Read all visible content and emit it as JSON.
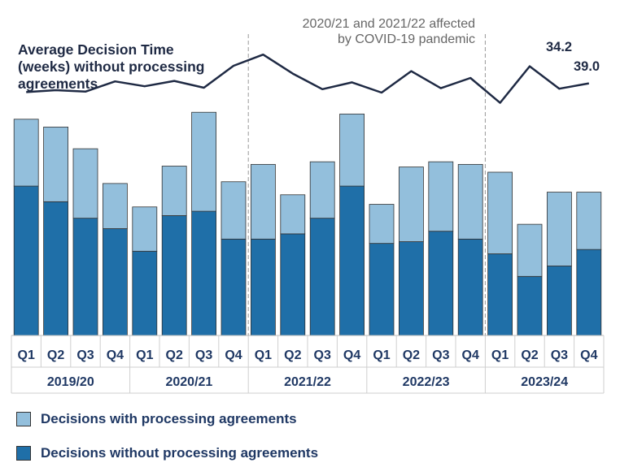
{
  "chart_data": {
    "type": "bar",
    "stacked": true,
    "categories": [
      "Q1",
      "Q2",
      "Q3",
      "Q4",
      "Q1",
      "Q2",
      "Q3",
      "Q4",
      "Q1",
      "Q2",
      "Q3",
      "Q4",
      "Q1",
      "Q2",
      "Q3",
      "Q4",
      "Q1",
      "Q2",
      "Q3",
      "Q4"
    ],
    "groups": [
      {
        "label": "2019/20",
        "start": 0,
        "end": 3
      },
      {
        "label": "2020/21",
        "start": 4,
        "end": 7
      },
      {
        "label": "2021/22",
        "start": 8,
        "end": 11
      },
      {
        "label": "2022/23",
        "start": 12,
        "end": 15
      },
      {
        "label": "2023/24",
        "start": 16,
        "end": 19
      }
    ],
    "series": [
      {
        "name": "Decisions without processing agreements",
        "color": "#1f6fa8",
        "values": [
          172,
          154,
          135,
          123,
          97,
          138,
          143,
          111,
          111,
          117,
          135,
          172,
          106,
          108,
          120,
          111,
          94,
          68,
          80,
          99
        ]
      },
      {
        "name": "Decisions with processing agreements",
        "color": "#93bfdc",
        "values": [
          77,
          86,
          80,
          52,
          51,
          57,
          114,
          66,
          86,
          45,
          65,
          83,
          45,
          86,
          80,
          86,
          94,
          60,
          85,
          66
        ]
      }
    ],
    "ylim": [
      0,
      260
    ],
    "line": {
      "name": "Average Decision Time (weeks) without processing agreements",
      "values": [
        33.6,
        34.0,
        33.7,
        35.8,
        34.8,
        35.9,
        34.5,
        39.0,
        41.3,
        37.4,
        34.2,
        35.6,
        33.5,
        37.9,
        34.4,
        36.5,
        31.4,
        38.9,
        34.3,
        35.4
      ],
      "ylim": [
        15,
        45
      ],
      "color": "#1f2a44"
    },
    "line_labels": [
      "34.2",
      "39.0"
    ],
    "annotation": [
      "2020/21 and 2021/22 affected",
      "by COVID-19 pandemic"
    ],
    "line_title": [
      "Average Decision Time",
      "(weeks) without processing",
      "agreements"
    ],
    "dividers_after": [
      7,
      15
    ]
  },
  "legend": {
    "with_label": "Decisions with processing agreements",
    "without_label": "Decisions without processing agreements",
    "with_color": "#93bfdc",
    "without_color": "#1f6fa8"
  }
}
